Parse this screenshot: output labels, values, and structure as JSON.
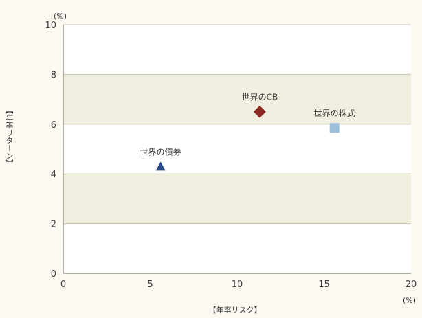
{
  "chart_data": {
    "type": "scatter",
    "xlabel": "【年率リスク】",
    "ylabel": "【年率リターン】",
    "x_unit": "(%)",
    "y_unit": "(%)",
    "xlim": [
      0,
      20
    ],
    "ylim": [
      0,
      10
    ],
    "x_ticks": [
      0,
      5,
      10,
      15,
      20
    ],
    "y_ticks": [
      0,
      2,
      4,
      6,
      8,
      10
    ],
    "bands": [
      [
        2,
        4
      ],
      [
        6,
        8
      ]
    ],
    "points": [
      {
        "label": "世界の債券",
        "x": 5.6,
        "y": 4.3,
        "marker": "triangle",
        "color": "#2a4a8a"
      },
      {
        "label": "世界のCB",
        "x": 11.3,
        "y": 6.5,
        "marker": "diamond",
        "color": "#8b2a22"
      },
      {
        "label": "世界の株式",
        "x": 15.6,
        "y": 5.85,
        "marker": "square",
        "color": "#9dbfdc"
      }
    ],
    "colors": {
      "plot_bg": "#ffffff",
      "band": "#f0eedf",
      "grid": "#c9c6b0",
      "axis": "#9a988c",
      "page_bg": "#fbf9f1"
    }
  }
}
